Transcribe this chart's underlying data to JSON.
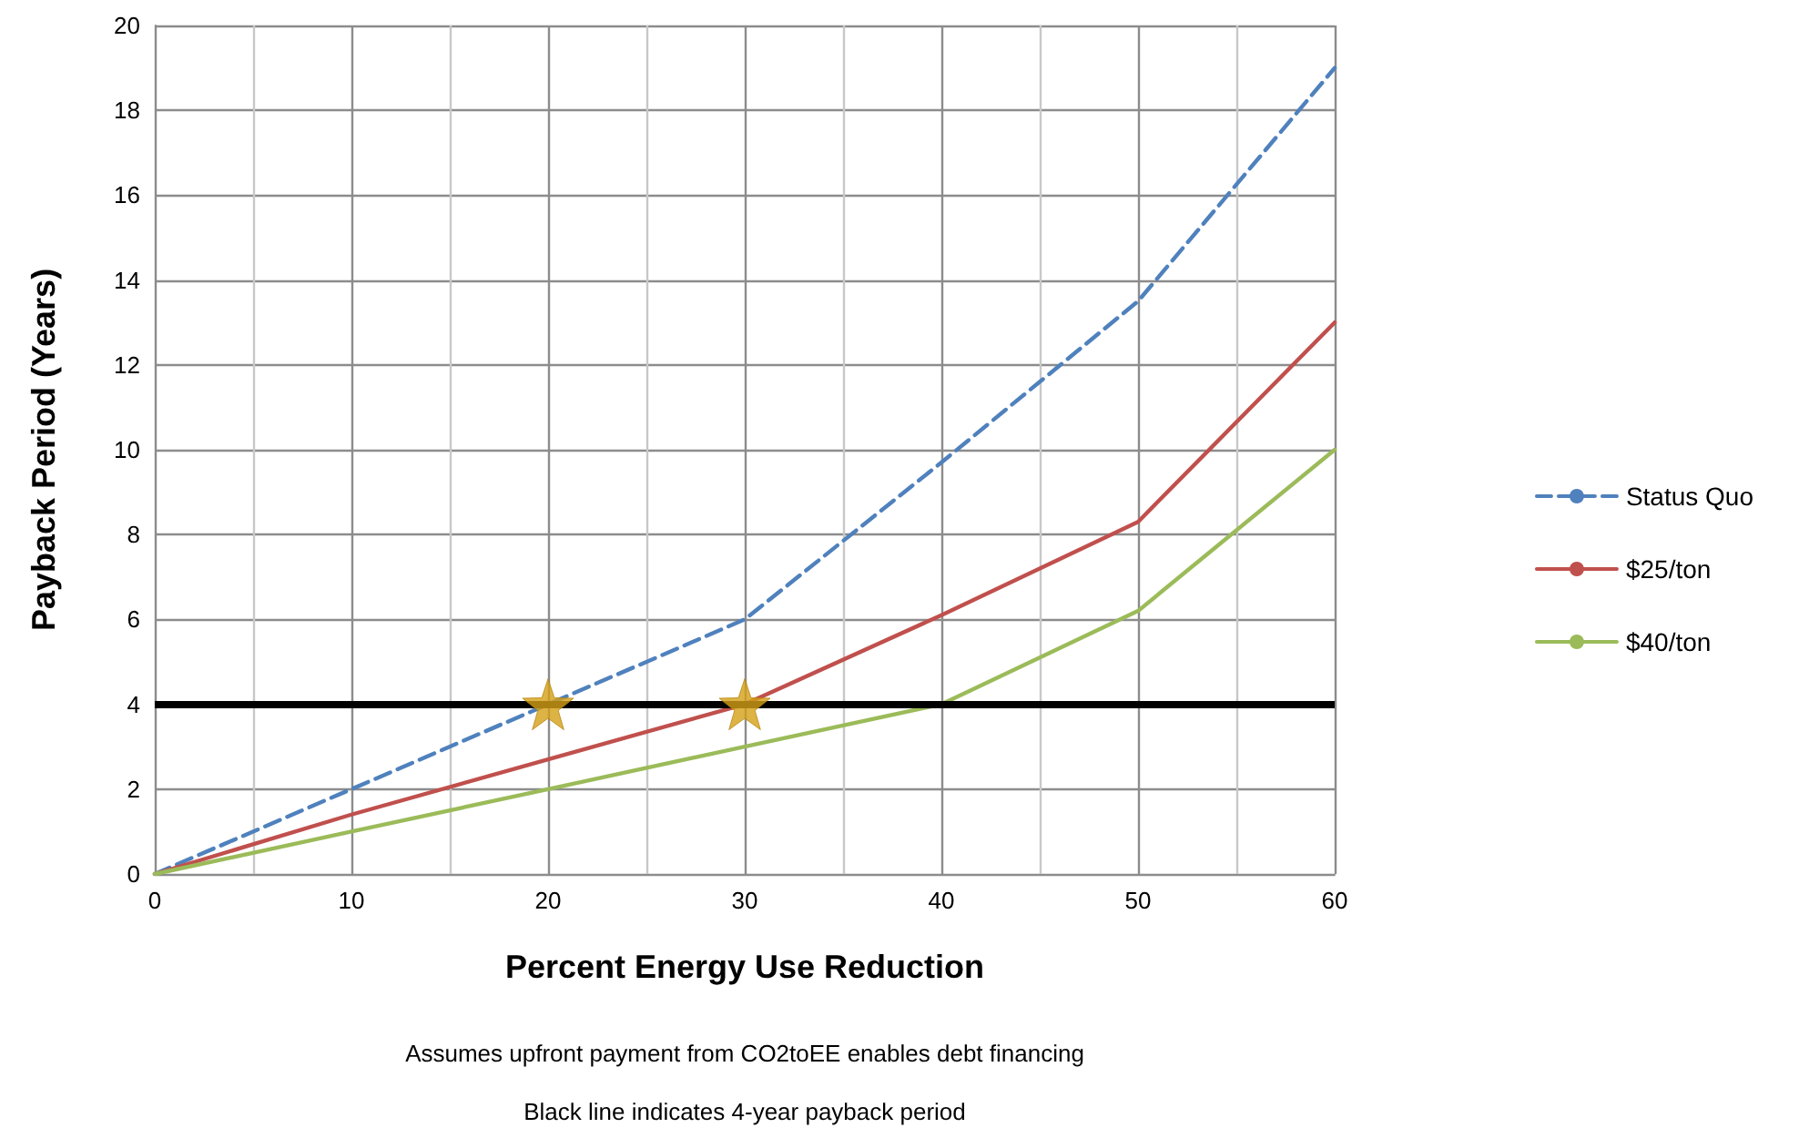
{
  "chart_data": {
    "type": "line",
    "xlabel": "Percent Energy Use Reduction",
    "ylabel": "Payback Period (Years)",
    "x": [
      0,
      10,
      20,
      30,
      40,
      50,
      60
    ],
    "series": [
      {
        "name": "Status Quo",
        "color": "#4f81bd",
        "line_style": "dashed",
        "values": [
          0,
          2,
          4,
          6,
          9.7,
          13.5,
          19
        ]
      },
      {
        "name": "$25/ton",
        "color": "#c0504d",
        "values": [
          0,
          1.4,
          2.7,
          4,
          6.1,
          8.3,
          13
        ]
      },
      {
        "name": "$40/ton",
        "color": "#9bbb59",
        "values": [
          0,
          1,
          2,
          3,
          4,
          6.2,
          10
        ]
      },
      {
        "type": "scatter",
        "color": "#d4a017",
        "marker": "star",
        "x": [
          20,
          30
        ],
        "values": [
          4,
          4
        ]
      }
    ],
    "xlim": [
      0,
      60
    ],
    "xticks": [
      0,
      10,
      20,
      30,
      40,
      50,
      60
    ],
    "ylim": [
      0,
      20
    ],
    "yticks": [
      0,
      2,
      4,
      6,
      8,
      10,
      12,
      14,
      16,
      18,
      20
    ],
    "grid": true,
    "legend": "right",
    "marker": "none",
    "line_style": "solid",
    "ref_lines": [
      {
        "axis": "y",
        "value": 4,
        "color": "#000000"
      }
    ],
    "annotations": [
      "Assumes upfront payment from CO2toEE enables debt financing",
      "Black line indicates 4-year payback period"
    ]
  }
}
